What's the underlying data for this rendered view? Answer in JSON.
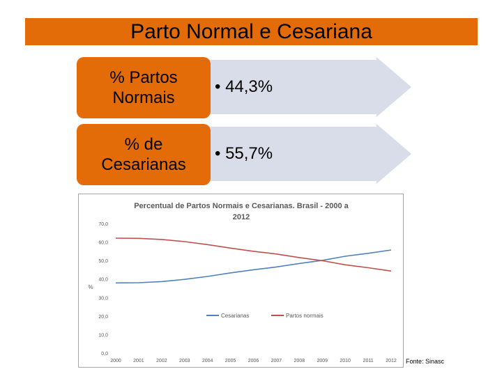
{
  "slide": {
    "title": "Parto Normal e Cesariana",
    "source": "Fonte: Sinasc"
  },
  "stats": [
    {
      "label_line1": "% Partos",
      "label_line2": "Normais",
      "value": "• 44,3%"
    },
    {
      "label_line1": "% de",
      "label_line2": "Cesarianas",
      "value": "• 55,7%"
    }
  ],
  "colors": {
    "accent": "#e36c09",
    "arrow_fill": "#d9dde9",
    "cesarianas": "#4f81bd",
    "partos_normais": "#c0504d"
  },
  "chart_data": {
    "type": "line",
    "title_line1": "Percentual de Partos Normais e Cesarianas. Brasil - 2000 a",
    "title_line2": "2012",
    "ylabel": "%",
    "xlabel": "",
    "ylim": [
      0,
      70
    ],
    "yticks": [
      "0,0",
      "10,0",
      "20,0",
      "30,0",
      "40,0",
      "50,0",
      "60,0",
      "70,0"
    ],
    "categories": [
      "2000",
      "2001",
      "2002",
      "2003",
      "2004",
      "2005",
      "2006",
      "2007",
      "2008",
      "2009",
      "2010",
      "2011",
      "2012"
    ],
    "series": [
      {
        "name": "Cesarianas",
        "values": [
          37.9,
          38.0,
          38.6,
          39.8,
          41.4,
          43.3,
          45.0,
          46.5,
          48.4,
          50.1,
          52.3,
          53.9,
          55.7
        ]
      },
      {
        "name": "Partos normais",
        "values": [
          62.1,
          62.0,
          61.4,
          60.2,
          58.6,
          56.7,
          55.0,
          53.5,
          51.6,
          49.9,
          47.7,
          46.1,
          44.3
        ]
      }
    ],
    "legend_position": "bottom",
    "grid": false
  }
}
